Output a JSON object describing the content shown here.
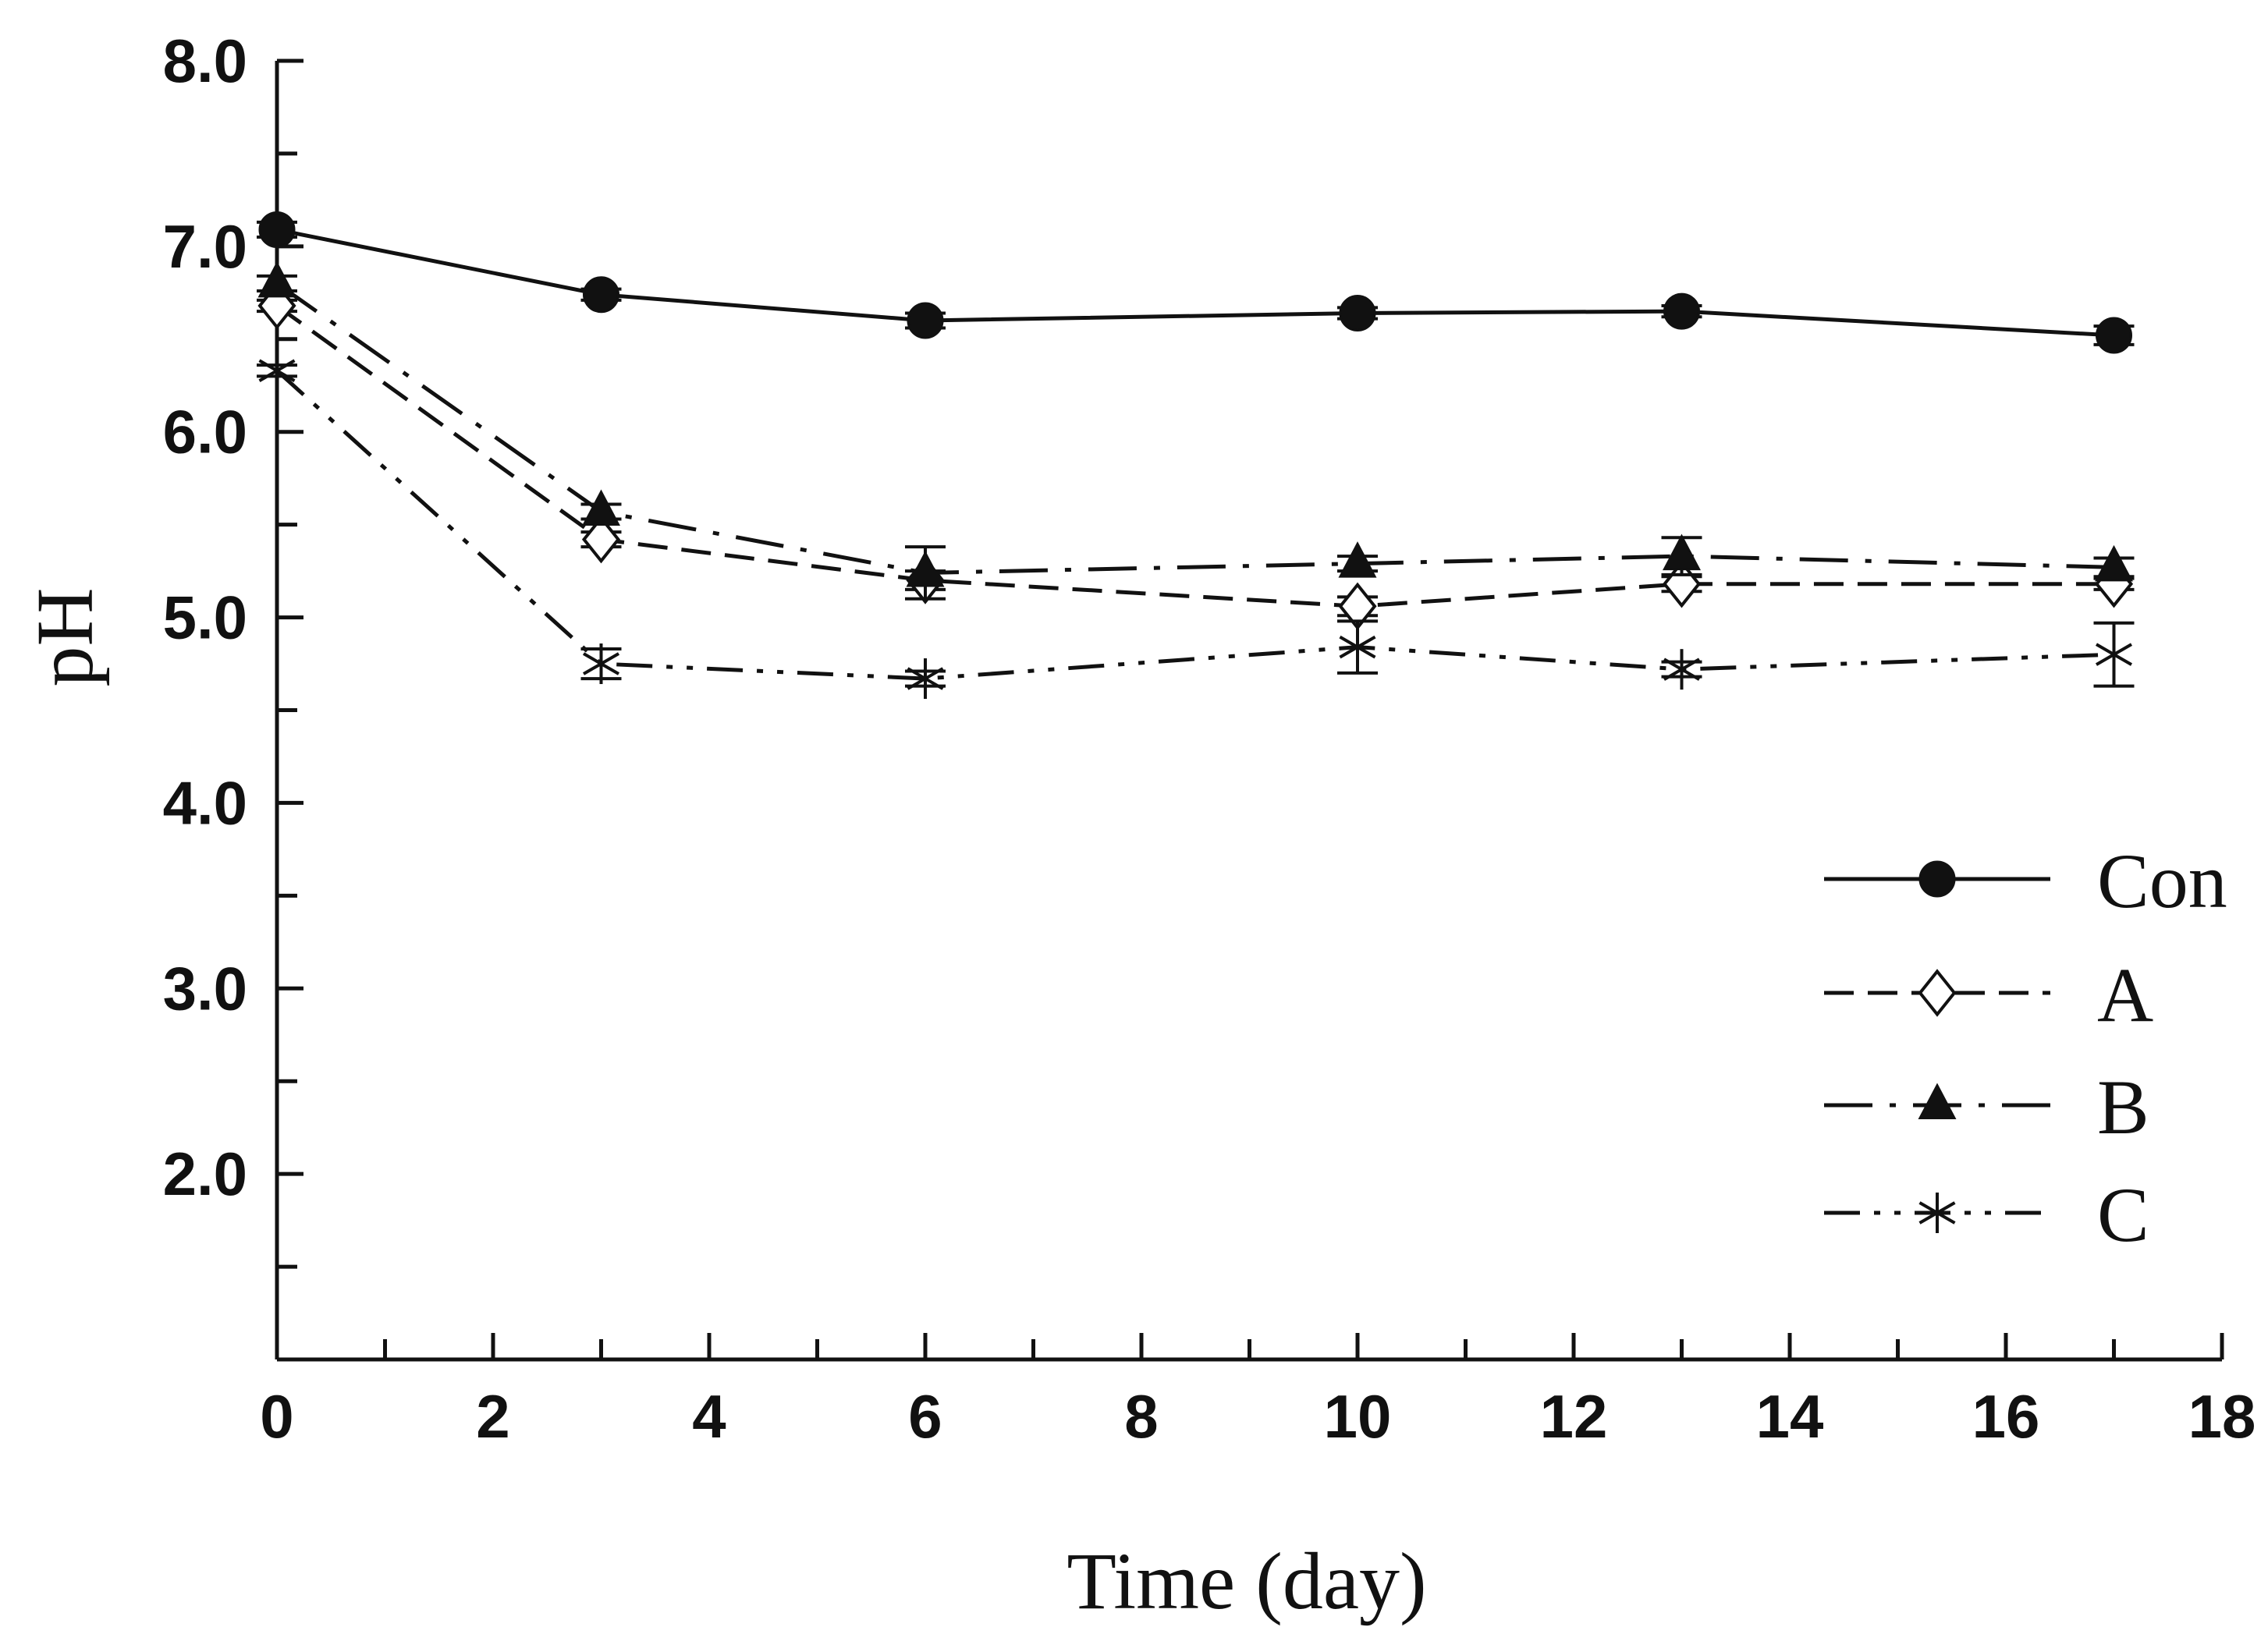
{
  "chart_data": {
    "type": "line",
    "title": "",
    "xlabel": "Time (day)",
    "ylabel": "pH",
    "xlim": [
      0,
      18
    ],
    "ylim": [
      1.0,
      8.0
    ],
    "x_ticks": [
      0,
      2,
      4,
      6,
      8,
      10,
      12,
      14,
      16,
      18
    ],
    "x_tick_labels": [
      "0",
      "2",
      "4",
      "6",
      "8",
      "10",
      "12",
      "14",
      "16",
      "18"
    ],
    "y_ticks": [
      2.0,
      3.0,
      4.0,
      5.0,
      6.0,
      7.0,
      8.0
    ],
    "y_tick_labels": [
      "2.0",
      "3.0",
      "4.0",
      "5.0",
      "6.0",
      "7.0",
      "8.0"
    ],
    "legend_position": "right",
    "x": [
      0,
      3,
      6,
      10,
      13,
      17
    ],
    "series": [
      {
        "name": "Con",
        "marker": "filled-circle",
        "line": "solid",
        "values": [
          7.09,
          6.74,
          6.6,
          6.64,
          6.65,
          6.52
        ],
        "errors": [
          0.04,
          0.03,
          0.04,
          0.03,
          0.03,
          0.05
        ]
      },
      {
        "name": "A",
        "marker": "open-diamond",
        "line": "dash",
        "values": [
          6.68,
          5.42,
          5.2,
          5.06,
          5.18,
          5.18
        ],
        "errors": [
          0.03,
          0.04,
          0.05,
          0.05,
          0.04,
          0.03
        ]
      },
      {
        "name": "B",
        "marker": "filled-triangle",
        "line": "dash-dot",
        "values": [
          6.8,
          5.57,
          5.24,
          5.29,
          5.33,
          5.27
        ],
        "errors": [
          0.04,
          0.04,
          0.14,
          0.04,
          0.1,
          0.05
        ]
      },
      {
        "name": "C",
        "marker": "star",
        "line": "dash-dot-dot",
        "values": [
          6.33,
          4.75,
          4.67,
          4.84,
          4.72,
          4.8
        ],
        "errors": [
          0.03,
          0.08,
          0.04,
          0.14,
          0.04,
          0.17
        ]
      }
    ]
  }
}
